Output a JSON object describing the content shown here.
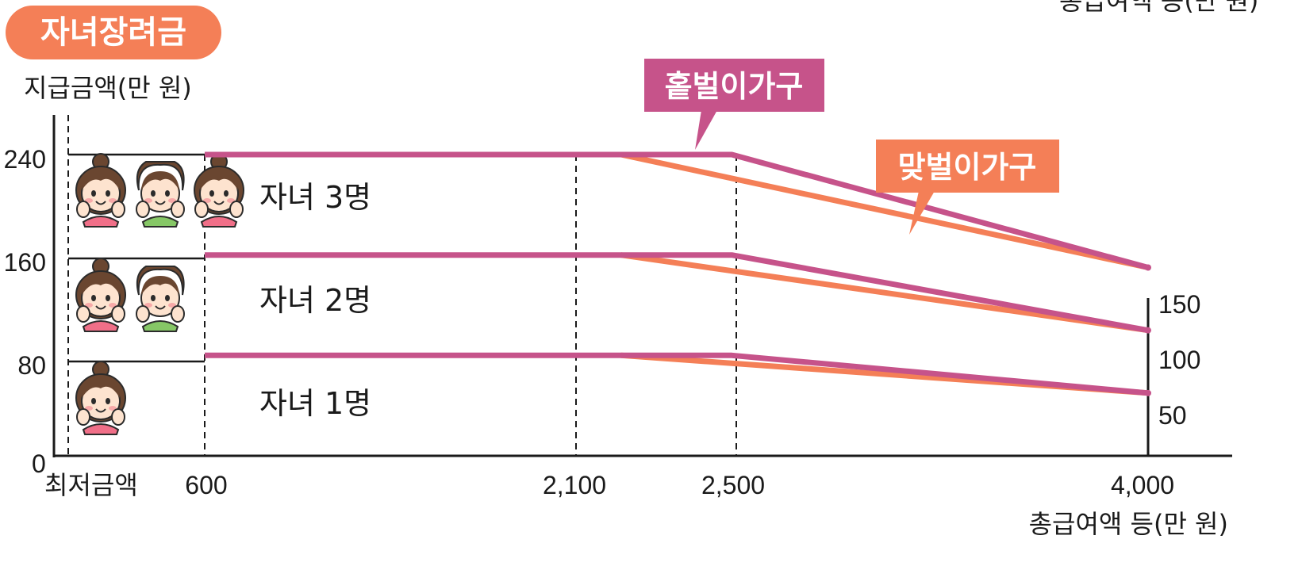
{
  "chart_data": {
    "type": "line",
    "title": "자녀장려금",
    "ylabel": "지급금액(만 원)",
    "xlabel": "총급여액 등(만 원)",
    "top_right_label_partial": "총급여액 등(만 원)",
    "origin_label": "0",
    "min_label": "최저금액",
    "x_tick_labels": [
      "600",
      "2,100",
      "2,500",
      "4,000"
    ],
    "x_ticks": [
      600,
      2100,
      2500,
      4000
    ],
    "y_tick_labels": [
      "80",
      "160",
      "240"
    ],
    "y_ticks": [
      80,
      160,
      240
    ],
    "right_value_labels": [
      "150",
      "100",
      "50"
    ],
    "ylim": [
      0,
      240
    ],
    "rows": [
      {
        "label": "자녀 3명",
        "children": [
          "girl",
          "boy",
          "girl"
        ],
        "max": 240
      },
      {
        "label": "자녀 2명",
        "children": [
          "girl",
          "boy"
        ],
        "max": 160
      },
      {
        "label": "자녀 1명",
        "children": [
          "girl"
        ],
        "max": 80
      }
    ],
    "series": [
      {
        "name": "홑벌이가구",
        "color": "#c6538a",
        "lines": [
          {
            "children": 3,
            "x": [
              600,
              2500,
              4000
            ],
            "y": [
              240,
              240,
              150
            ]
          },
          {
            "children": 2,
            "x": [
              600,
              2500,
              4000
            ],
            "y": [
              160,
              160,
              100
            ]
          },
          {
            "children": 1,
            "x": [
              600,
              2500,
              4000
            ],
            "y": [
              80,
              80,
              50
            ]
          }
        ]
      },
      {
        "name": "맞벌이가구",
        "color": "#f47f57",
        "lines": [
          {
            "children": 3,
            "x": [
              2100,
              4000
            ],
            "y": [
              240,
              150
            ]
          },
          {
            "children": 2,
            "x": [
              2100,
              4000
            ],
            "y": [
              160,
              100
            ]
          },
          {
            "children": 1,
            "x": [
              2100,
              4000
            ],
            "y": [
              80,
              50
            ]
          }
        ]
      }
    ]
  }
}
